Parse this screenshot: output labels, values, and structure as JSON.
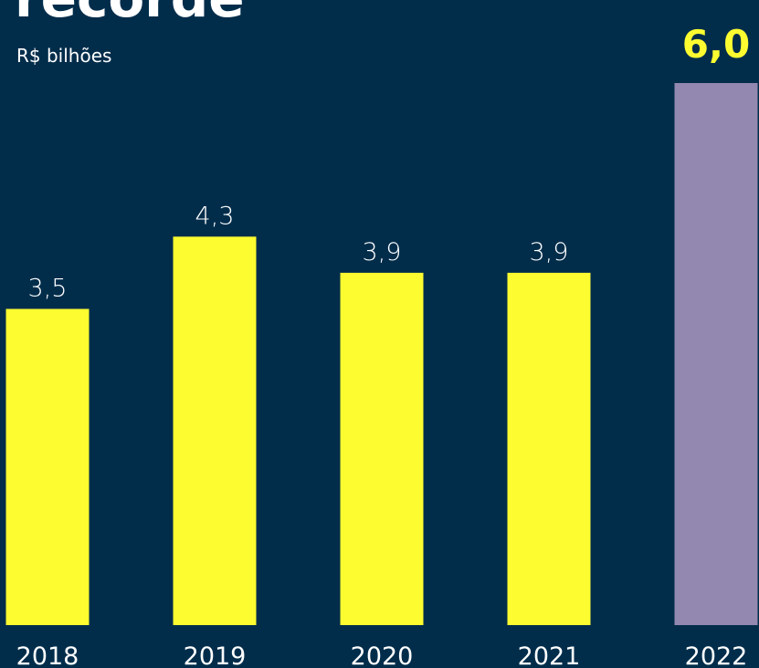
{
  "chart_data": {
    "type": "bar",
    "title": "recorde",
    "subtitle": "R$ bilhões",
    "categories": [
      "2018",
      "2019",
      "2020",
      "2021",
      "2022"
    ],
    "values": [
      3.5,
      4.3,
      3.9,
      3.9,
      6.0
    ],
    "value_labels": [
      "3,5",
      "4,3",
      "3,9",
      "3,9",
      "6,0"
    ],
    "colors": [
      "#fcfc30",
      "#fcfc30",
      "#fcfc30",
      "#fcfc30",
      "#9388b0"
    ],
    "ylim": [
      0,
      6
    ]
  }
}
